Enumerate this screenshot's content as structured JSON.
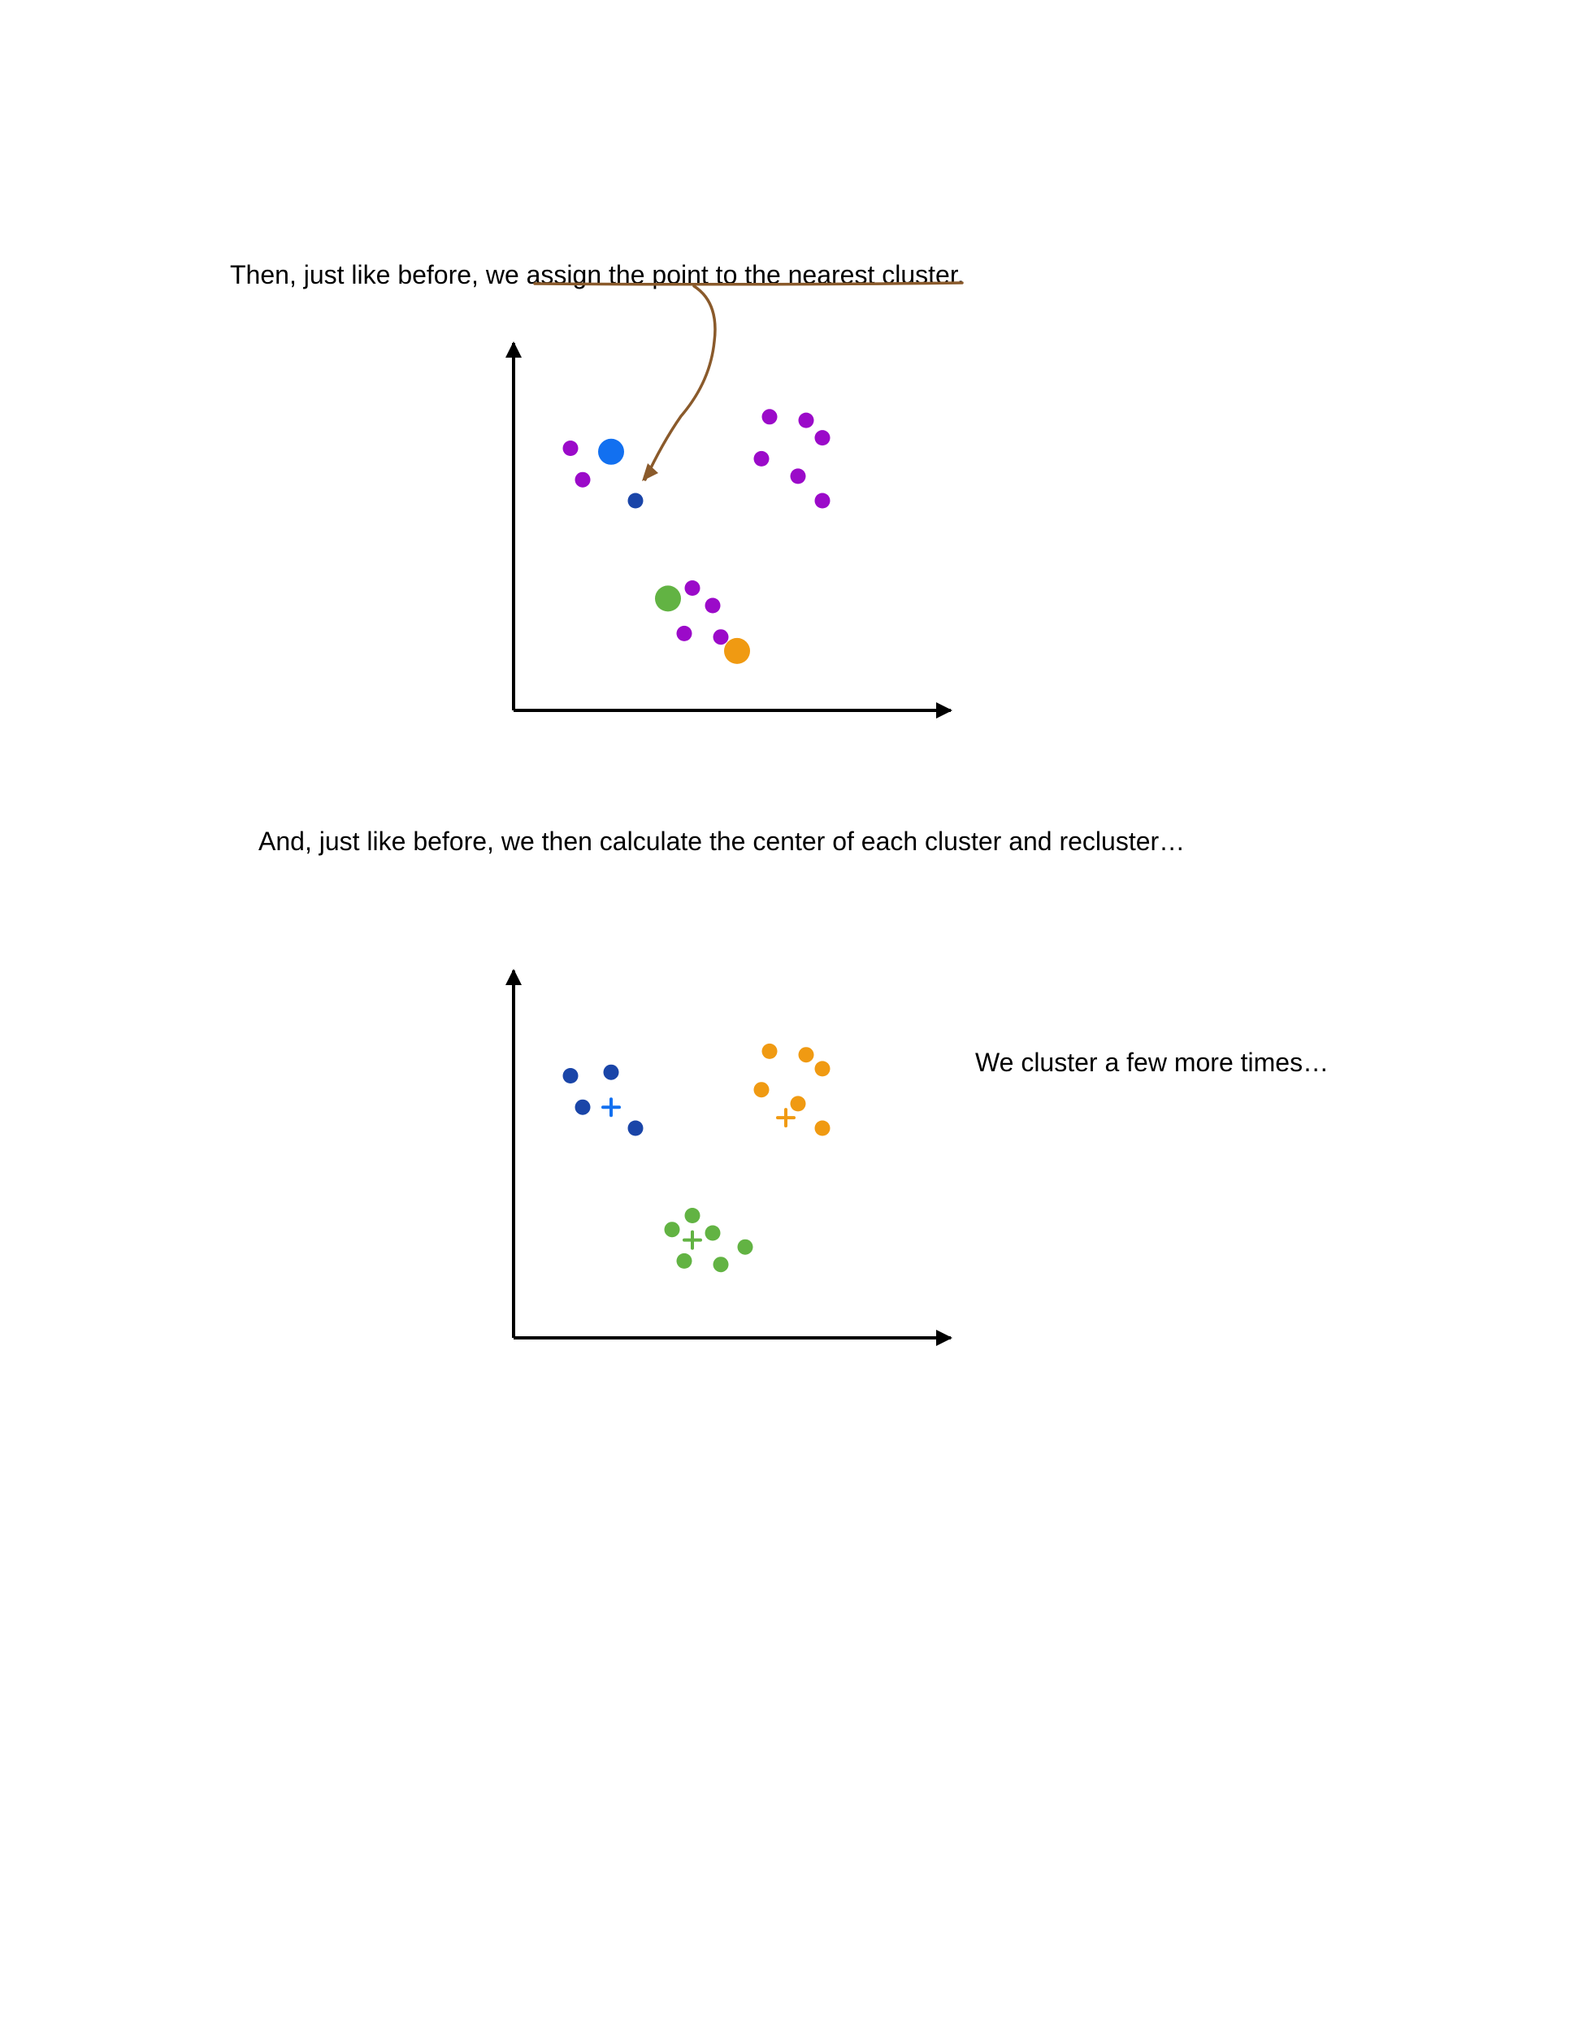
{
  "captions": {
    "step_assign": "Then, just like before, we assign the point to the nearest cluster.",
    "step_recenter": "And, just like before, we then calculate the center of each cluster and recluster…",
    "step_repeat": "We cluster a few more times…"
  },
  "colors": {
    "unassigned": "#9b0ac9",
    "cluster_blue": "#1a45a8",
    "centroid_blue": "#1270f0",
    "cluster_orange": "#f09a12",
    "cluster_green": "#62b343",
    "annotation": "#8a5a2b",
    "axis": "#000000"
  },
  "chart_data": [
    {
      "type": "scatter",
      "title": "",
      "xlabel": "",
      "ylabel": "",
      "xlim": [
        0,
        100
      ],
      "ylim": [
        0,
        100
      ],
      "grid": false,
      "series": [
        {
          "role": "unassigned",
          "color": "#9b0ac9",
          "marker": "dot",
          "points": [
            [
              14,
              75
            ],
            [
              17,
              66
            ],
            [
              63,
              84
            ],
            [
              72,
              83
            ],
            [
              76,
              78
            ],
            [
              61,
              72
            ],
            [
              70,
              67
            ],
            [
              76,
              60
            ],
            [
              44,
              35
            ],
            [
              49,
              30
            ],
            [
              42,
              22
            ],
            [
              51,
              21
            ]
          ]
        },
        {
          "role": "assigned-to-blue",
          "color": "#1a45a8",
          "marker": "dot",
          "points": [
            [
              30,
              60
            ]
          ]
        },
        {
          "role": "centroid-blue",
          "color": "#1270f0",
          "marker": "large-dot",
          "points": [
            [
              24,
              74
            ]
          ]
        },
        {
          "role": "centroid-green",
          "color": "#62b343",
          "marker": "large-dot",
          "points": [
            [
              38,
              32
            ]
          ]
        },
        {
          "role": "centroid-orange",
          "color": "#f09a12",
          "marker": "large-dot",
          "points": [
            [
              55,
              17
            ]
          ]
        }
      ],
      "annotation": {
        "type": "underline-arrow",
        "color": "#8a5a2b",
        "points_to": [
          30,
          60
        ]
      }
    },
    {
      "type": "scatter",
      "title": "",
      "xlabel": "",
      "ylabel": "",
      "xlim": [
        0,
        100
      ],
      "ylim": [
        0,
        100
      ],
      "grid": false,
      "series": [
        {
          "role": "cluster-blue",
          "color": "#1a45a8",
          "marker": "dot",
          "points": [
            [
              14,
              75
            ],
            [
              24,
              76
            ],
            [
              17,
              66
            ],
            [
              30,
              60
            ]
          ]
        },
        {
          "role": "centroid-blue",
          "color": "#1270f0",
          "marker": "plus",
          "points": [
            [
              24,
              66
            ]
          ]
        },
        {
          "role": "cluster-orange",
          "color": "#f09a12",
          "marker": "dot",
          "points": [
            [
              63,
              82
            ],
            [
              72,
              81
            ],
            [
              76,
              77
            ],
            [
              61,
              71
            ],
            [
              70,
              67
            ],
            [
              76,
              60
            ]
          ]
        },
        {
          "role": "centroid-orange",
          "color": "#f09a12",
          "marker": "plus",
          "points": [
            [
              67,
              63
            ]
          ]
        },
        {
          "role": "cluster-green",
          "color": "#62b343",
          "marker": "dot",
          "points": [
            [
              39,
              31
            ],
            [
              44,
              35
            ],
            [
              49,
              30
            ],
            [
              57,
              26
            ],
            [
              42,
              22
            ],
            [
              51,
              21
            ]
          ]
        },
        {
          "role": "centroid-green",
          "color": "#62b343",
          "marker": "plus",
          "points": [
            [
              44,
              28
            ]
          ]
        }
      ]
    }
  ]
}
